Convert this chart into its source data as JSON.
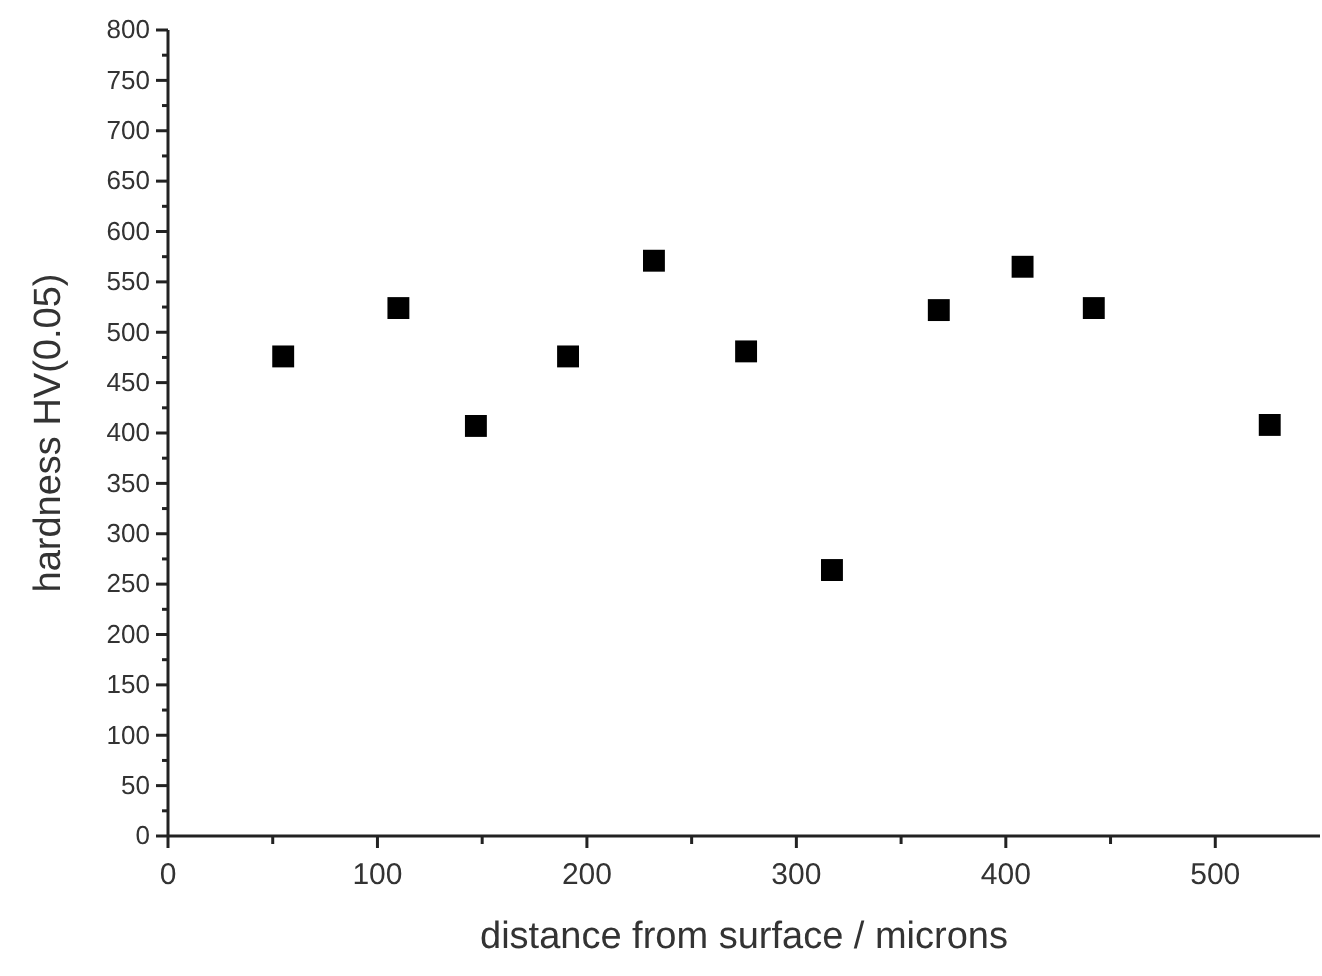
{
  "chart_data": {
    "type": "scatter",
    "xlabel": "distance from surface / microns",
    "ylabel": "hardness HV(0.05)",
    "x": [
      55,
      110,
      147,
      191,
      232,
      276,
      317,
      368,
      408,
      442,
      526
    ],
    "values": [
      476,
      524,
      407,
      476,
      571,
      481,
      264,
      522,
      565,
      524,
      408
    ],
    "color": "#000000",
    "marker": "square",
    "xlim": [
      0,
      550
    ],
    "ylim": [
      0,
      800
    ],
    "xticks": [
      0,
      {
        "value": 50,
        "label": null
      },
      100,
      {
        "value": 150,
        "label": null
      },
      200,
      {
        "value": 250,
        "label": null
      },
      300,
      {
        "value": 350,
        "label": null
      },
      400,
      {
        "value": 450,
        "label": null
      },
      500
    ],
    "yticks": [
      0,
      {
        "value": 25,
        "label": null
      },
      50,
      {
        "value": 75,
        "label": null
      },
      100,
      {
        "value": 125,
        "label": null
      },
      150,
      {
        "value": 175,
        "label": null
      },
      200,
      {
        "value": 225,
        "label": null
      },
      250,
      {
        "value": 275,
        "label": null
      },
      300,
      {
        "value": 325,
        "label": null
      },
      350,
      {
        "value": 375,
        "label": null
      },
      400,
      {
        "value": 425,
        "label": null
      },
      450,
      {
        "value": 475,
        "label": null
      },
      500,
      {
        "value": 525,
        "label": null
      },
      550,
      {
        "value": 575,
        "label": null
      },
      600,
      {
        "value": 625,
        "label": null
      },
      650,
      {
        "value": 675,
        "label": null
      },
      700,
      {
        "value": 725,
        "label": null
      },
      750,
      {
        "value": 775,
        "label": null
      },
      800
    ]
  }
}
